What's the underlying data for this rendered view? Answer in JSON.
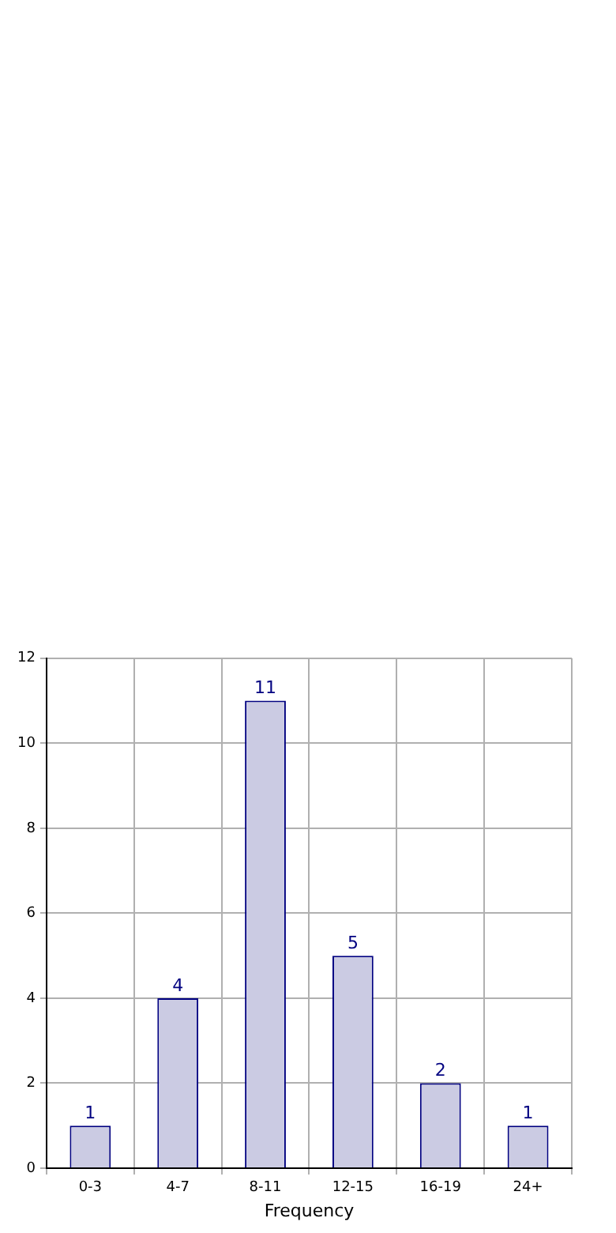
{
  "chart_data": {
    "type": "bar",
    "xlabel": "Frequency",
    "categories": [
      "0-3",
      "4-7",
      "8-11",
      "12-15",
      "16-19",
      "24+"
    ],
    "values": [
      1,
      4,
      11,
      5,
      2,
      1
    ],
    "color": "#cbcbe3",
    "ylim": [
      0,
      12
    ],
    "yticks": [
      0,
      2,
      4,
      6,
      8,
      10,
      12
    ],
    "grid": true,
    "data_labels": true,
    "legend": false
  }
}
